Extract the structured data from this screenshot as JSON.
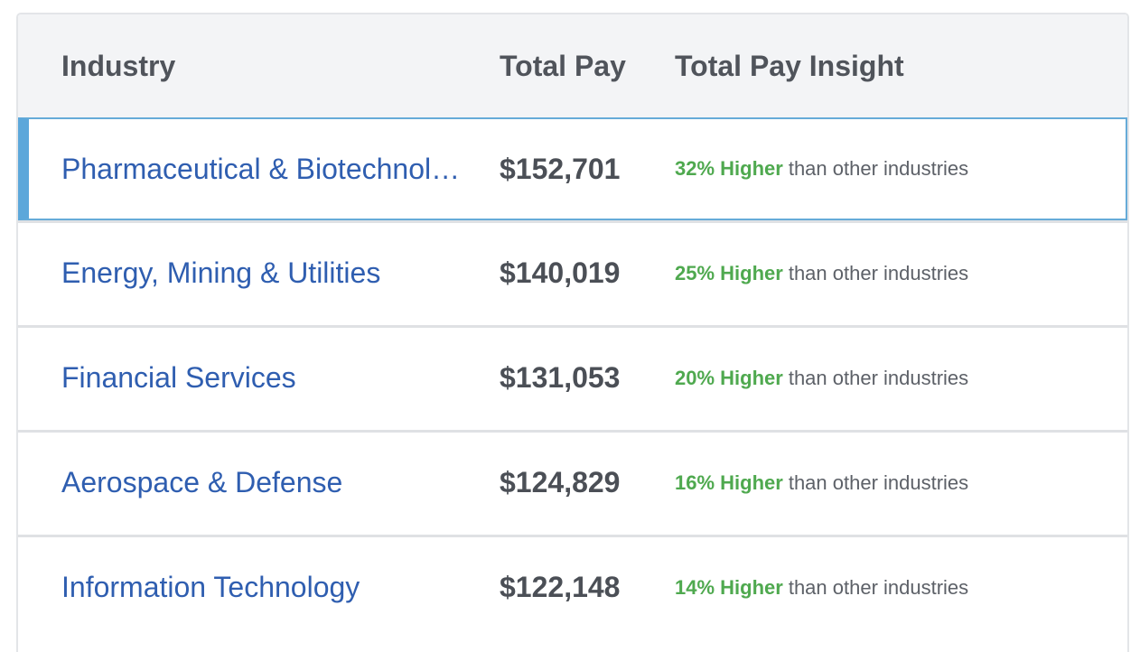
{
  "table": {
    "headers": {
      "industry": "Industry",
      "total_pay": "Total Pay",
      "insight": "Total Pay Insight"
    },
    "selected_row": 0,
    "colors": {
      "link": "#2f5eb0",
      "highlight_green": "#4fa94f",
      "selection_accent": "#5ca7da",
      "header_bg": "#f3f4f6"
    },
    "rows": [
      {
        "industry": "Pharmaceutical & Biotechnology",
        "industry_display": "Pharmaceutical & Biotechnolo…",
        "total_pay": "$152,701",
        "insight_highlight": "32% Higher",
        "insight_text": "than other industries"
      },
      {
        "industry": "Energy, Mining & Utilities",
        "industry_display": "Energy, Mining & Utilities",
        "total_pay": "$140,019",
        "insight_highlight": "25% Higher",
        "insight_text": "than other industries"
      },
      {
        "industry": "Financial Services",
        "industry_display": "Financial Services",
        "total_pay": "$131,053",
        "insight_highlight": "20% Higher",
        "insight_text": "than other industries"
      },
      {
        "industry": "Aerospace & Defense",
        "industry_display": "Aerospace & Defense",
        "total_pay": "$124,829",
        "insight_highlight": "16% Higher",
        "insight_text": "than other industries"
      },
      {
        "industry": "Information Technology",
        "industry_display": "Information Technology",
        "total_pay": "$122,148",
        "insight_highlight": "14% Higher",
        "insight_text": "than other industries"
      }
    ]
  }
}
